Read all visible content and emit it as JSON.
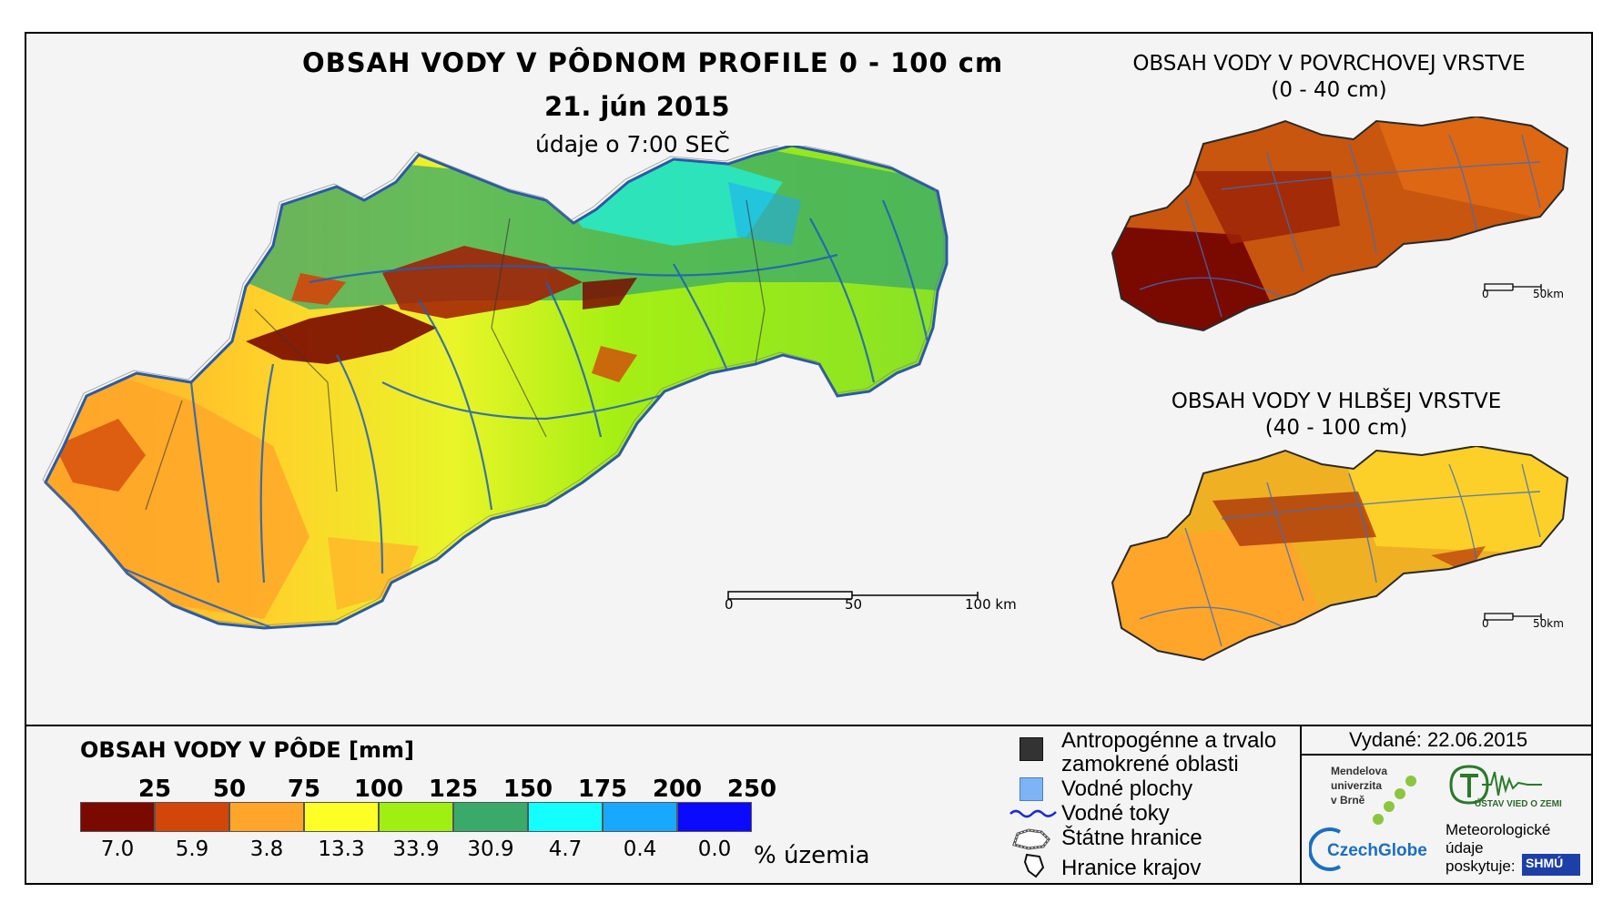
{
  "map": {
    "title": "OBSAH VODY V PÔDNOM PROFILE 0 - 100 cm",
    "date": "21. jún 2015",
    "time_note": "údaje o 7:00 SEČ",
    "scale": {
      "labels": [
        "0",
        "50",
        "100 km"
      ]
    }
  },
  "insets": [
    {
      "title_line1": "OBSAH VODY V POVRCHOVEJ VRSTVE",
      "title_line2": "(0 - 40 cm)",
      "scale": [
        "0",
        "50km"
      ]
    },
    {
      "title_line1": "OBSAH VODY V HLBŠEJ VRSTVE",
      "title_line2": "(40 - 100 cm)",
      "scale": [
        "0",
        "50km"
      ]
    }
  ],
  "legend": {
    "title": "OBSAH VODY V PÔDE [mm]",
    "bin_edges": [
      "25",
      "50",
      "75",
      "100",
      "125",
      "150",
      "175",
      "200",
      "250"
    ],
    "colors": [
      "#7a0a00",
      "#d2460a",
      "#ffa529",
      "#ffff28",
      "#9fef12",
      "#3aaa6a",
      "#14ffff",
      "#19a8ff",
      "#0a0aff"
    ],
    "percent_values": [
      "7.0",
      "5.9",
      "3.8",
      "13.3",
      "33.9",
      "30.9",
      "4.7",
      "0.4",
      "0.0"
    ],
    "percent_unit": "% územia"
  },
  "symbols": {
    "anthropogenic_line1": "Antropogénne a trvalo",
    "anthropogenic_line2": "zamokrené oblasti",
    "water_bodies": "Vodné plochy",
    "streams": "Vodné toky",
    "state_border": "Štátne hranice",
    "region_border": "Hranice krajov"
  },
  "credits": {
    "issued": "Vydané: 22.06.2015",
    "mendel_line1": "Mendelova",
    "mendel_line2": "univerzita",
    "mendel_line3": "v Brně",
    "czechglobe": "CzechGlobe",
    "ustav": "ÚSTAV VIED O ZEMI",
    "meteo_line1": "Meteorologické",
    "meteo_line2": "údaje",
    "meteo_line3": "poskytuje:",
    "shmu": "SHMÚ"
  }
}
